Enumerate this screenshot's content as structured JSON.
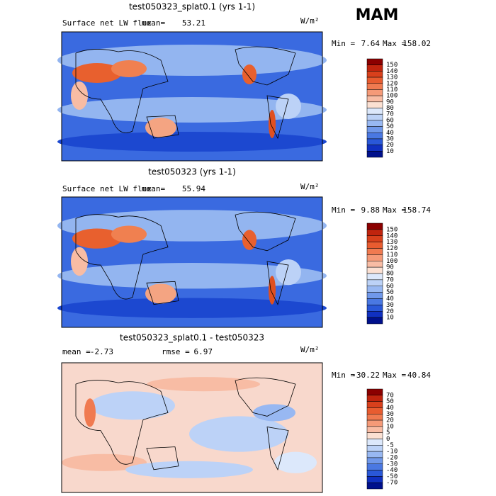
{
  "season": "MAM",
  "panels": [
    {
      "title": "test050323_splat0.1 (yrs 1-1)",
      "variable": "Surface net LW flux",
      "stats": [
        {
          "label": "mean=",
          "value": 53.21
        }
      ],
      "units": "W/m²",
      "min_label": "Min =",
      "min": 7.64,
      "max_label": "Max =",
      "max": 158.02,
      "colorbar": {
        "labels": [
          150,
          140,
          130,
          120,
          110,
          100,
          90,
          80,
          70,
          60,
          50,
          40,
          30,
          20,
          10
        ],
        "colors": [
          "#8b0000",
          "#c0240e",
          "#d8401c",
          "#e85c30",
          "#f07a50",
          "#f59a78",
          "#f8bca4",
          "#fbe0d2",
          "#dce8fb",
          "#bcd2f7",
          "#98b8f2",
          "#7098ea",
          "#4a78e2",
          "#2a58d8",
          "#1030c0",
          "#00108c"
        ]
      }
    },
    {
      "title": "test050323 (yrs 1-1)",
      "variable": "Surface net LW flux",
      "stats": [
        {
          "label": "mean=",
          "value": 55.94
        }
      ],
      "units": "W/m²",
      "min_label": "Min =",
      "min": 9.88,
      "max_label": "Max =",
      "max": 158.74,
      "colorbar": {
        "labels": [
          150,
          140,
          130,
          120,
          110,
          100,
          90,
          80,
          70,
          60,
          50,
          40,
          30,
          20,
          10
        ],
        "colors": [
          "#8b0000",
          "#c0240e",
          "#d8401c",
          "#e85c30",
          "#f07a50",
          "#f59a78",
          "#f8bca4",
          "#fbe0d2",
          "#dce8fb",
          "#bcd2f7",
          "#98b8f2",
          "#7098ea",
          "#4a78e2",
          "#2a58d8",
          "#1030c0",
          "#00108c"
        ]
      }
    },
    {
      "title": "test050323_splat0.1 - test050323",
      "stats": [
        {
          "label": "mean =",
          "value": -2.73
        },
        {
          "label": "rmse =",
          "value": 6.97
        }
      ],
      "units": "W/m²",
      "min_label": "Min =",
      "min": -30.22,
      "max_label": "Max =",
      "max": 40.84,
      "colorbar": {
        "labels": [
          70,
          50,
          40,
          30,
          20,
          10,
          5,
          0,
          -5,
          -10,
          -20,
          -30,
          -40,
          -50,
          -70
        ],
        "colors": [
          "#8b0000",
          "#c0240e",
          "#d8401c",
          "#e85c30",
          "#f07a50",
          "#f59a78",
          "#f8bca4",
          "#fbe0d2",
          "#dce8fb",
          "#bcd2f7",
          "#98b8f2",
          "#7098ea",
          "#4a78e2",
          "#2a58d8",
          "#1030c0",
          "#00108c"
        ]
      }
    }
  ]
}
